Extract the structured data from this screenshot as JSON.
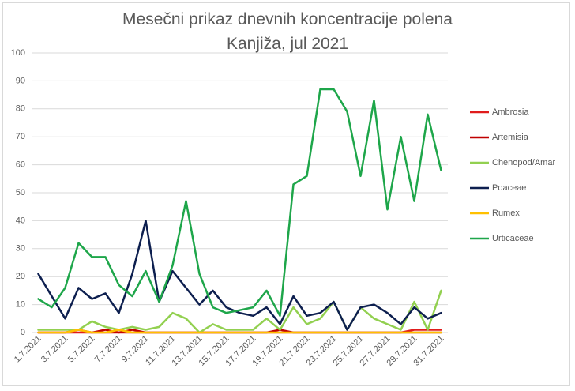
{
  "chart_data": {
    "type": "line",
    "title_line1": "Mesečni prikaz dnevnih koncentracije polena",
    "title_line2": "Kanjiža, jul 2021",
    "xlabel": "",
    "ylabel": "",
    "ylim": [
      0,
      100
    ],
    "yticks": [
      "0",
      "10",
      "20",
      "30",
      "40",
      "50",
      "60",
      "70",
      "80",
      "90",
      "100"
    ],
    "grid": true,
    "legend_position": "right",
    "x": [
      "1.7.2021",
      "2.7.2021",
      "3.7.2021",
      "4.7.2021",
      "5.7.2021",
      "6.7.2021",
      "7.7.2021",
      "8.7.2021",
      "9.7.2021",
      "10.7.2021",
      "11.7.2021",
      "12.7.2021",
      "13.7.2021",
      "14.7.2021",
      "15.7.2021",
      "16.7.2021",
      "17.7.2021",
      "18.7.2021",
      "19.7.2021",
      "20.7.2021",
      "21.7.2021",
      "22.7.2021",
      "23.7.2021",
      "24.7.2021",
      "25.7.2021",
      "26.7.2021",
      "27.7.2021",
      "28.7.2021",
      "29.7.2021",
      "30.7.2021",
      "31.7.2021"
    ],
    "x_tick_labels": [
      "1.7.2021",
      "3.7.2021",
      "5.7.2021",
      "7.7.2021",
      "9.7.2021",
      "11.7.2021",
      "13.7.2021",
      "15.7.2021",
      "17.7.2021",
      "19.7.2021",
      "21.7.2021",
      "23.7.2021",
      "25.7.2021",
      "27.7.2021",
      "29.7.2021",
      "31.7.2021"
    ],
    "series": [
      {
        "name": "Ambrosia",
        "color": "#e01c1c",
        "values": [
          0,
          0,
          0,
          0,
          0,
          0,
          0,
          0,
          0,
          0,
          0,
          0,
          0,
          0,
          0,
          0,
          0,
          0,
          0,
          0,
          0,
          0,
          0,
          0,
          0,
          0,
          0,
          0,
          1,
          1,
          1
        ]
      },
      {
        "name": "Artemisia",
        "color": "#c00000",
        "values": [
          0,
          0,
          0,
          1,
          0,
          1,
          0,
          1,
          0,
          0,
          0,
          0,
          0,
          0,
          0,
          0,
          0,
          0,
          1,
          0,
          0,
          0,
          0,
          0,
          0,
          0,
          0,
          0,
          0,
          0,
          0
        ]
      },
      {
        "name": "Chenopod/Amar",
        "color": "#92d050",
        "values": [
          1,
          1,
          1,
          1,
          4,
          2,
          1,
          2,
          1,
          2,
          7,
          5,
          0,
          3,
          1,
          1,
          1,
          5,
          1,
          9,
          3,
          5,
          11,
          1,
          9,
          5,
          3,
          1,
          11,
          1,
          15
        ]
      },
      {
        "name": "Poaceae",
        "color": "#0d1f4f",
        "values": [
          21,
          13,
          5,
          16,
          12,
          14,
          7,
          21,
          40,
          11,
          22,
          16,
          10,
          15,
          9,
          7,
          6,
          9,
          3,
          13,
          6,
          7,
          11,
          1,
          9,
          10,
          7,
          3,
          9,
          5,
          7
        ]
      },
      {
        "name": "Rumex",
        "color": "#ffc000",
        "values": [
          0,
          0,
          0,
          1,
          0,
          0,
          1,
          0,
          0,
          0,
          0,
          0,
          0,
          0,
          0,
          0,
          0,
          0,
          0,
          0,
          0,
          0,
          0,
          0,
          0,
          0,
          0,
          0,
          0,
          0,
          0
        ]
      },
      {
        "name": "Urticaceae",
        "color": "#1ea64a",
        "values": [
          12,
          9,
          16,
          32,
          27,
          27,
          17,
          13,
          22,
          11,
          24,
          47,
          21,
          9,
          7,
          8,
          9,
          15,
          6,
          53,
          56,
          87,
          87,
          79,
          56,
          83,
          44,
          70,
          47,
          78,
          58
        ]
      }
    ]
  }
}
